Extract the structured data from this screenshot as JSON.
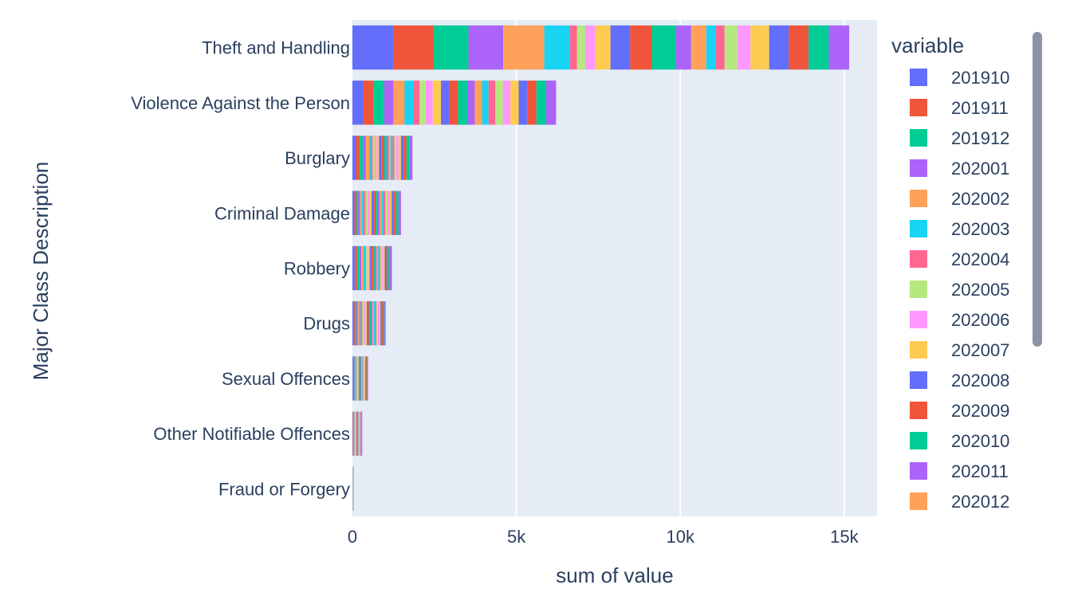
{
  "chart_data": {
    "type": "bar",
    "orientation": "horizontal",
    "barmode": "stack",
    "xlabel": "sum of value",
    "ylabel": "Major Class Description",
    "xlim": [
      0,
      16000
    ],
    "x_ticks": [
      0,
      5000,
      10000,
      15000
    ],
    "x_tick_labels": [
      "0",
      "5k",
      "10k",
      "15k"
    ],
    "grid": true,
    "legend_title": "variable",
    "legend_position": "right",
    "legend_scrollable": true,
    "categories": [
      "Theft and Handling",
      "Violence Against the Person",
      "Burglary",
      "Criminal Damage",
      "Robbery",
      "Drugs",
      "Sexual Offences",
      "Other Notifiable Offences",
      "Fraud or Forgery"
    ],
    "segment_colors": [
      "#636efa",
      "#EF553B",
      "#00cc96",
      "#ab63fa",
      "#FFA15A",
      "#19d3f3",
      "#FF6692",
      "#B6E880",
      "#FF97FF",
      "#FECB52"
    ],
    "legend": [
      {
        "name": "201910",
        "color": "#636efa"
      },
      {
        "name": "201911",
        "color": "#EF553B"
      },
      {
        "name": "201912",
        "color": "#00cc96"
      },
      {
        "name": "202001",
        "color": "#ab63fa"
      },
      {
        "name": "202002",
        "color": "#FFA15A"
      },
      {
        "name": "202003",
        "color": "#19d3f3"
      },
      {
        "name": "202004",
        "color": "#FF6692"
      },
      {
        "name": "202005",
        "color": "#B6E880"
      },
      {
        "name": "202006",
        "color": "#FF97FF"
      },
      {
        "name": "202007",
        "color": "#FECB52"
      },
      {
        "name": "202008",
        "color": "#636efa"
      },
      {
        "name": "202009",
        "color": "#EF553B"
      },
      {
        "name": "202010",
        "color": "#00cc96"
      },
      {
        "name": "202011",
        "color": "#ab63fa"
      },
      {
        "name": "202012",
        "color": "#FFA15A"
      }
    ],
    "stacks": [
      [
        1250,
        1230,
        1060,
        1060,
        1250,
        780,
        220,
        250,
        300,
        470,
        600,
        660,
        740,
        460,
        460,
        280,
        280,
        390,
        400,
        570,
        600,
        600,
        620,
        620
      ],
      [
        330,
        320,
        320,
        280,
        340,
        280,
        180,
        180,
        220,
        250,
        250,
        270,
        280,
        230,
        220,
        200,
        210,
        230,
        230,
        250,
        260,
        280,
        300,
        300
      ],
      [
        110,
        110,
        100,
        90,
        100,
        60,
        50,
        60,
        60,
        70,
        70,
        80,
        80,
        60,
        60,
        60,
        60,
        60,
        70,
        70,
        80,
        90,
        90,
        90
      ],
      [
        60,
        60,
        55,
        55,
        60,
        55,
        55,
        60,
        60,
        65,
        60,
        60,
        60,
        60,
        60,
        60,
        60,
        60,
        65,
        65,
        65,
        70,
        75,
        75
      ],
      [
        70,
        70,
        70,
        65,
        65,
        50,
        25,
        30,
        35,
        45,
        50,
        55,
        55,
        45,
        40,
        40,
        40,
        40,
        45,
        50,
        50,
        55,
        55,
        60
      ],
      [
        40,
        40,
        40,
        40,
        40,
        45,
        55,
        50,
        45,
        45,
        45,
        45,
        45,
        40,
        40,
        40,
        40,
        40,
        40,
        40,
        40,
        40,
        40,
        40
      ],
      [
        22,
        22,
        20,
        20,
        22,
        18,
        12,
        15,
        18,
        20,
        22,
        22,
        22,
        20,
        18,
        18,
        18,
        20,
        20,
        22,
        22,
        22,
        22,
        22
      ],
      [
        14,
        14,
        13,
        13,
        13,
        12,
        10,
        10,
        11,
        12,
        12,
        13,
        13,
        12,
        12,
        12,
        12,
        12,
        12,
        13,
        13,
        13,
        14,
        14
      ],
      [
        2,
        2,
        2,
        2,
        2,
        2,
        1,
        1,
        1,
        1,
        2,
        2,
        2,
        2,
        2,
        2,
        2,
        2,
        2,
        2,
        2,
        2,
        2,
        2
      ]
    ]
  }
}
